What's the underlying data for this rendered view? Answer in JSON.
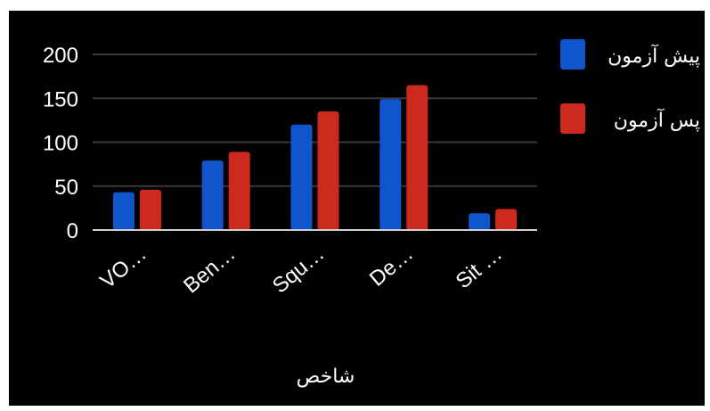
{
  "chart_data": {
    "type": "bar",
    "title": "",
    "xlabel": "شاخص",
    "ylabel": "",
    "categories": [
      "VO…",
      "Ben…",
      "Squ…",
      "De…",
      "Sit …"
    ],
    "series": [
      {
        "name": "پیش آزمون",
        "color": "#1155cc",
        "values": [
          43,
          79,
          120,
          149,
          19
        ]
      },
      {
        "name": "پس آزمون",
        "color": "#cc2a1e",
        "values": [
          46,
          89,
          135,
          165,
          24
        ]
      }
    ],
    "yticks": [
      0,
      50,
      100,
      150,
      200
    ],
    "ylim": [
      0,
      200
    ],
    "grid": true,
    "legend_position": "right",
    "background": "#000000"
  }
}
